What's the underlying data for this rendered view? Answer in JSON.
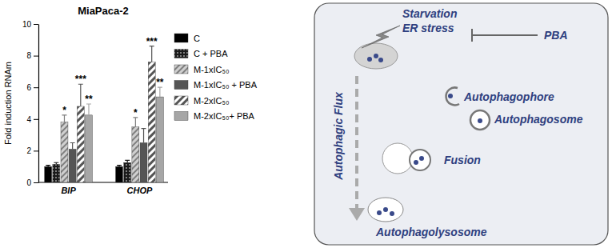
{
  "chart_data": {
    "type": "bar",
    "title": "MiaPaca-2",
    "y_label": "Fold induction RNAm",
    "categories": [
      "BIP",
      "CHOP"
    ],
    "ylim": [
      0,
      10
    ],
    "yticks": [
      0,
      2,
      4,
      6,
      8,
      10
    ],
    "legend": "right",
    "series": [
      {
        "name": "C",
        "color": "#000000",
        "values": [
          1.0,
          1.0
        ],
        "errors": [
          0.08,
          0.08
        ],
        "significance": [
          null,
          null
        ]
      },
      {
        "name": "C + PBA",
        "color": "#1a1a1a",
        "values": [
          1.15,
          1.25
        ],
        "errors": [
          0.1,
          0.15
        ],
        "significance": [
          null,
          null
        ]
      },
      {
        "name": "M-1xIC₅₀",
        "color": "#7f7f7f",
        "values": [
          3.8,
          3.5
        ],
        "errors": [
          0.45,
          0.6
        ],
        "significance": [
          "*",
          "*"
        ]
      },
      {
        "name": "M-1xIC₅₀ + PBA",
        "color": "#555555",
        "values": [
          2.1,
          2.5
        ],
        "errors": [
          0.4,
          0.9
        ],
        "significance": [
          null,
          null
        ]
      },
      {
        "name": "M-2xIC₅₀",
        "color": "#555555",
        "values": [
          4.8,
          7.6
        ],
        "errors": [
          1.4,
          1.0
        ],
        "significance": [
          "***",
          "***"
        ]
      },
      {
        "name": "M-2xIC₅₀+ PBA",
        "color": "#a6a6a6",
        "values": [
          4.25,
          5.4
        ],
        "errors": [
          0.7,
          0.6
        ],
        "significance": [
          "**",
          "**"
        ]
      }
    ]
  },
  "diagram": {
    "stress": [
      "Starvation",
      "ER stress"
    ],
    "inhibitor": "PBA",
    "flux": "Autophagic Flux",
    "stages": [
      "Autophagophore",
      "Autophagosome",
      "Fusion",
      "Autophagolysosome"
    ]
  }
}
